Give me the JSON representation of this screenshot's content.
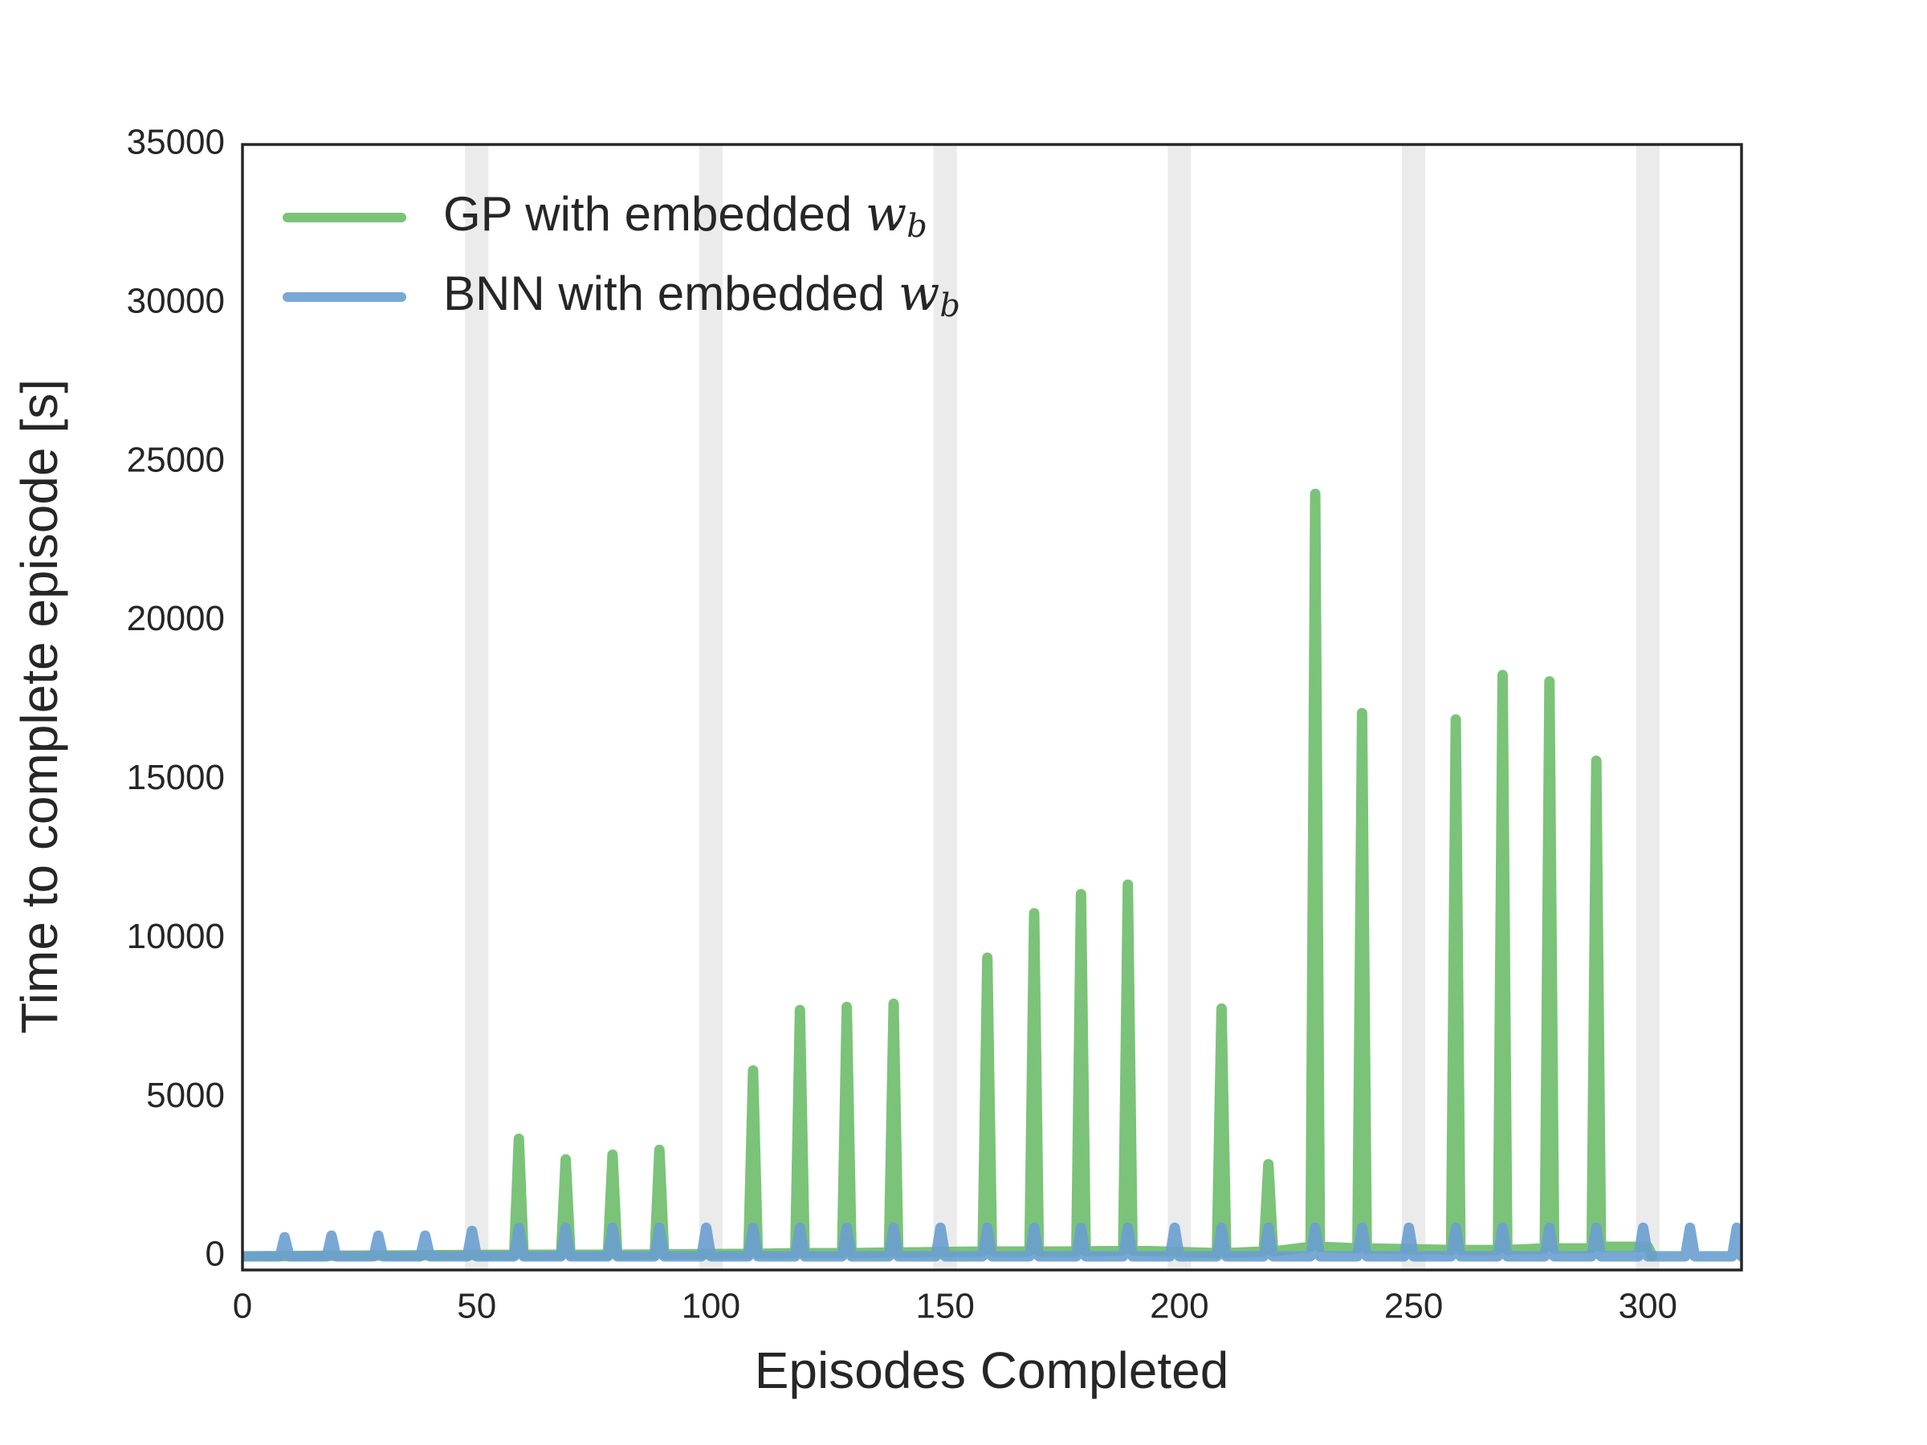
{
  "chart_data": {
    "type": "line",
    "xlabel": "Episodes Completed",
    "ylabel": "Time to complete episode [s]",
    "xlim": [
      0,
      320
    ],
    "xticks": [
      0,
      50,
      100,
      150,
      200,
      250,
      300
    ],
    "ylim": [
      -430,
      35000
    ],
    "yticks": [
      0,
      5000,
      10000,
      15000,
      20000,
      25000,
      30000,
      35000
    ],
    "grid": false,
    "legend": "upper left",
    "bands": [
      [
        47.5,
        52.5
      ],
      [
        97.5,
        102.5
      ],
      [
        147.5,
        152.5
      ],
      [
        197.5,
        202.5
      ],
      [
        247.5,
        252.5
      ],
      [
        297.5,
        302.5
      ]
    ],
    "band_color": "#ebebeb",
    "series": [
      {
        "name": "GP with embedded w_b",
        "color": "#6dbd6a",
        "x": [
          0,
          58,
          59,
          60,
          68,
          69,
          70,
          78,
          79,
          80,
          88,
          89,
          90,
          108,
          109,
          110,
          118,
          119,
          120,
          128,
          129,
          130,
          138,
          139,
          140,
          158,
          159,
          160,
          168,
          169,
          170,
          178,
          179,
          180,
          188,
          189,
          190,
          208,
          209,
          210,
          218,
          219,
          220,
          228,
          229,
          230,
          238,
          239,
          240,
          258,
          259,
          260,
          268,
          269,
          270,
          278,
          279,
          280,
          288,
          289,
          290,
          300,
          301
        ],
        "values": [
          0,
          50,
          3700,
          50,
          50,
          3050,
          50,
          50,
          3200,
          50,
          60,
          3350,
          60,
          80,
          5850,
          80,
          100,
          7750,
          100,
          100,
          7850,
          100,
          120,
          7950,
          120,
          150,
          9400,
          150,
          150,
          10800,
          150,
          150,
          11400,
          150,
          180,
          11700,
          180,
          100,
          7800,
          100,
          150,
          2900,
          150,
          300,
          24000,
          300,
          250,
          17100,
          250,
          200,
          16900,
          200,
          200,
          18300,
          200,
          250,
          18100,
          250,
          250,
          15600,
          300,
          300,
          0
        ]
      },
      {
        "name": "BNN with embedded w_b",
        "color": "#6a9fd0",
        "x": [
          0,
          8,
          9,
          10,
          18,
          19,
          20,
          28,
          29,
          30,
          38,
          39,
          40,
          48,
          49,
          50,
          58,
          59,
          60,
          68,
          69,
          70,
          78,
          79,
          80,
          88,
          89,
          90,
          98,
          99,
          100,
          108,
          109,
          110,
          118,
          119,
          120,
          128,
          129,
          130,
          138,
          139,
          140,
          148,
          149,
          150,
          158,
          159,
          160,
          168,
          169,
          170,
          178,
          179,
          180,
          188,
          189,
          190,
          198,
          199,
          200,
          208,
          209,
          210,
          218,
          219,
          220,
          228,
          229,
          230,
          238,
          239,
          240,
          248,
          249,
          250,
          258,
          259,
          260,
          268,
          269,
          270,
          278,
          279,
          280,
          288,
          289,
          290,
          298,
          299,
          300,
          308,
          309,
          310,
          318,
          319,
          320
        ],
        "values": [
          0,
          0,
          600,
          0,
          0,
          650,
          0,
          0,
          650,
          0,
          0,
          650,
          0,
          0,
          800,
          0,
          0,
          900,
          0,
          0,
          900,
          0,
          0,
          900,
          0,
          0,
          900,
          0,
          0,
          900,
          0,
          0,
          900,
          0,
          0,
          900,
          0,
          0,
          900,
          0,
          0,
          900,
          0,
          0,
          900,
          0,
          0,
          900,
          0,
          0,
          900,
          0,
          0,
          900,
          0,
          0,
          900,
          0,
          0,
          900,
          0,
          0,
          900,
          0,
          0,
          900,
          0,
          0,
          900,
          0,
          0,
          900,
          0,
          0,
          900,
          0,
          0,
          900,
          0,
          0,
          900,
          0,
          0,
          900,
          0,
          0,
          900,
          0,
          0,
          900,
          0,
          0,
          900,
          0,
          0,
          900,
          0
        ]
      }
    ]
  }
}
